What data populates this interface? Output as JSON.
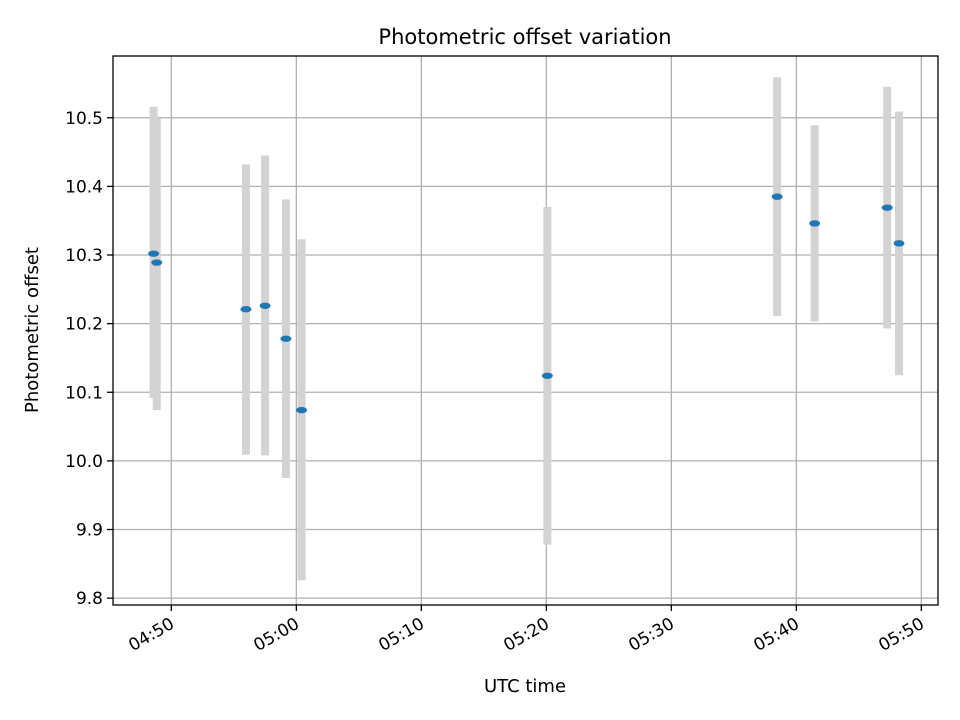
{
  "chart_data": {
    "type": "scatter",
    "title": "Photometric offset variation",
    "xlabel": "UTC time",
    "ylabel": "Photometric offset",
    "x_ticks": [
      "04:50",
      "05:00",
      "05:10",
      "05:20",
      "05:30",
      "05:40",
      "05:50"
    ],
    "x_tick_minutes": [
      290,
      300,
      310,
      320,
      330,
      340,
      350
    ],
    "xlim": [
      "04:45:20",
      "05:51:20"
    ],
    "y_ticks": [
      "9.8",
      "9.9",
      "10.0",
      "10.1",
      "10.2",
      "10.3",
      "10.4",
      "10.5"
    ],
    "ylim": [
      9.79,
      10.59
    ],
    "grid": true,
    "colors": {
      "marker": "#1f77b4",
      "errorbar": "#d3d3d3",
      "grid": "#b0b0b0"
    },
    "points": [
      {
        "time": "04:48:35",
        "y": 10.302,
        "err_low": 10.092,
        "err_high": 10.516
      },
      {
        "time": "04:48:50",
        "y": 10.289,
        "err_low": 10.074,
        "err_high": 10.499
      },
      {
        "time": "04:55:58",
        "y": 10.221,
        "err_low": 10.009,
        "err_high": 10.432
      },
      {
        "time": "04:57:30",
        "y": 10.226,
        "err_low": 10.008,
        "err_high": 10.445
      },
      {
        "time": "04:59:10",
        "y": 10.178,
        "err_low": 9.975,
        "err_high": 10.381
      },
      {
        "time": "05:00:25",
        "y": 10.074,
        "err_low": 9.826,
        "err_high": 10.323
      },
      {
        "time": "05:20:05",
        "y": 10.124,
        "err_low": 9.878,
        "err_high": 10.37
      },
      {
        "time": "05:38:28",
        "y": 10.385,
        "err_low": 10.211,
        "err_high": 10.559
      },
      {
        "time": "05:41:28",
        "y": 10.346,
        "err_low": 10.203,
        "err_high": 10.489
      },
      {
        "time": "05:47:16",
        "y": 10.369,
        "err_low": 10.193,
        "err_high": 10.545
      },
      {
        "time": "05:48:13",
        "y": 10.317,
        "err_low": 10.125,
        "err_high": 10.509
      }
    ]
  }
}
